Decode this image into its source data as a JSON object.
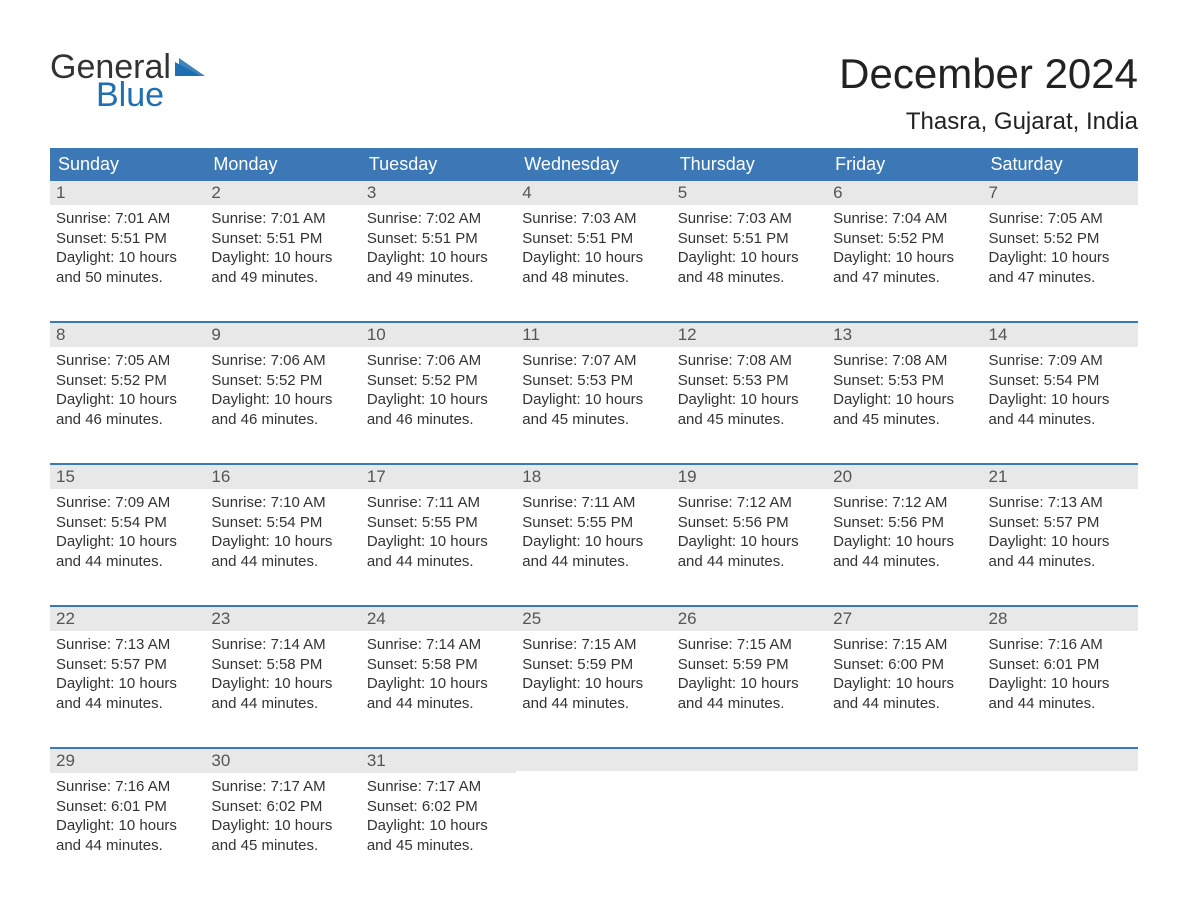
{
  "logo": {
    "word1": "General",
    "word2": "Blue",
    "flag_color": "#1f6fb2"
  },
  "title": "December 2024",
  "location": "Thasra, Gujarat, India",
  "colors": {
    "header_bg": "#3b78b5",
    "header_text": "#ffffff",
    "daynum_bg": "#e8e8e8",
    "week_border": "#3b78b5",
    "text": "#333333",
    "logo_blue": "#1f6fb2"
  },
  "day_headers": [
    "Sunday",
    "Monday",
    "Tuesday",
    "Wednesday",
    "Thursday",
    "Friday",
    "Saturday"
  ],
  "weeks": [
    [
      {
        "n": "1",
        "sunrise": "7:01 AM",
        "sunset": "5:51 PM",
        "dl1": "10 hours",
        "dl2": "and 50 minutes."
      },
      {
        "n": "2",
        "sunrise": "7:01 AM",
        "sunset": "5:51 PM",
        "dl1": "10 hours",
        "dl2": "and 49 minutes."
      },
      {
        "n": "3",
        "sunrise": "7:02 AM",
        "sunset": "5:51 PM",
        "dl1": "10 hours",
        "dl2": "and 49 minutes."
      },
      {
        "n": "4",
        "sunrise": "7:03 AM",
        "sunset": "5:51 PM",
        "dl1": "10 hours",
        "dl2": "and 48 minutes."
      },
      {
        "n": "5",
        "sunrise": "7:03 AM",
        "sunset": "5:51 PM",
        "dl1": "10 hours",
        "dl2": "and 48 minutes."
      },
      {
        "n": "6",
        "sunrise": "7:04 AM",
        "sunset": "5:52 PM",
        "dl1": "10 hours",
        "dl2": "and 47 minutes."
      },
      {
        "n": "7",
        "sunrise": "7:05 AM",
        "sunset": "5:52 PM",
        "dl1": "10 hours",
        "dl2": "and 47 minutes."
      }
    ],
    [
      {
        "n": "8",
        "sunrise": "7:05 AM",
        "sunset": "5:52 PM",
        "dl1": "10 hours",
        "dl2": "and 46 minutes."
      },
      {
        "n": "9",
        "sunrise": "7:06 AM",
        "sunset": "5:52 PM",
        "dl1": "10 hours",
        "dl2": "and 46 minutes."
      },
      {
        "n": "10",
        "sunrise": "7:06 AM",
        "sunset": "5:52 PM",
        "dl1": "10 hours",
        "dl2": "and 46 minutes."
      },
      {
        "n": "11",
        "sunrise": "7:07 AM",
        "sunset": "5:53 PM",
        "dl1": "10 hours",
        "dl2": "and 45 minutes."
      },
      {
        "n": "12",
        "sunrise": "7:08 AM",
        "sunset": "5:53 PM",
        "dl1": "10 hours",
        "dl2": "and 45 minutes."
      },
      {
        "n": "13",
        "sunrise": "7:08 AM",
        "sunset": "5:53 PM",
        "dl1": "10 hours",
        "dl2": "and 45 minutes."
      },
      {
        "n": "14",
        "sunrise": "7:09 AM",
        "sunset": "5:54 PM",
        "dl1": "10 hours",
        "dl2": "and 44 minutes."
      }
    ],
    [
      {
        "n": "15",
        "sunrise": "7:09 AM",
        "sunset": "5:54 PM",
        "dl1": "10 hours",
        "dl2": "and 44 minutes."
      },
      {
        "n": "16",
        "sunrise": "7:10 AM",
        "sunset": "5:54 PM",
        "dl1": "10 hours",
        "dl2": "and 44 minutes."
      },
      {
        "n": "17",
        "sunrise": "7:11 AM",
        "sunset": "5:55 PM",
        "dl1": "10 hours",
        "dl2": "and 44 minutes."
      },
      {
        "n": "18",
        "sunrise": "7:11 AM",
        "sunset": "5:55 PM",
        "dl1": "10 hours",
        "dl2": "and 44 minutes."
      },
      {
        "n": "19",
        "sunrise": "7:12 AM",
        "sunset": "5:56 PM",
        "dl1": "10 hours",
        "dl2": "and 44 minutes."
      },
      {
        "n": "20",
        "sunrise": "7:12 AM",
        "sunset": "5:56 PM",
        "dl1": "10 hours",
        "dl2": "and 44 minutes."
      },
      {
        "n": "21",
        "sunrise": "7:13 AM",
        "sunset": "5:57 PM",
        "dl1": "10 hours",
        "dl2": "and 44 minutes."
      }
    ],
    [
      {
        "n": "22",
        "sunrise": "7:13 AM",
        "sunset": "5:57 PM",
        "dl1": "10 hours",
        "dl2": "and 44 minutes."
      },
      {
        "n": "23",
        "sunrise": "7:14 AM",
        "sunset": "5:58 PM",
        "dl1": "10 hours",
        "dl2": "and 44 minutes."
      },
      {
        "n": "24",
        "sunrise": "7:14 AM",
        "sunset": "5:58 PM",
        "dl1": "10 hours",
        "dl2": "and 44 minutes."
      },
      {
        "n": "25",
        "sunrise": "7:15 AM",
        "sunset": "5:59 PM",
        "dl1": "10 hours",
        "dl2": "and 44 minutes."
      },
      {
        "n": "26",
        "sunrise": "7:15 AM",
        "sunset": "5:59 PM",
        "dl1": "10 hours",
        "dl2": "and 44 minutes."
      },
      {
        "n": "27",
        "sunrise": "7:15 AM",
        "sunset": "6:00 PM",
        "dl1": "10 hours",
        "dl2": "and 44 minutes."
      },
      {
        "n": "28",
        "sunrise": "7:16 AM",
        "sunset": "6:01 PM",
        "dl1": "10 hours",
        "dl2": "and 44 minutes."
      }
    ],
    [
      {
        "n": "29",
        "sunrise": "7:16 AM",
        "sunset": "6:01 PM",
        "dl1": "10 hours",
        "dl2": "and 44 minutes."
      },
      {
        "n": "30",
        "sunrise": "7:17 AM",
        "sunset": "6:02 PM",
        "dl1": "10 hours",
        "dl2": "and 45 minutes."
      },
      {
        "n": "31",
        "sunrise": "7:17 AM",
        "sunset": "6:02 PM",
        "dl1": "10 hours",
        "dl2": "and 45 minutes."
      },
      null,
      null,
      null,
      null
    ]
  ],
  "labels": {
    "sunrise": "Sunrise: ",
    "sunset": "Sunset: ",
    "daylight": "Daylight: "
  }
}
